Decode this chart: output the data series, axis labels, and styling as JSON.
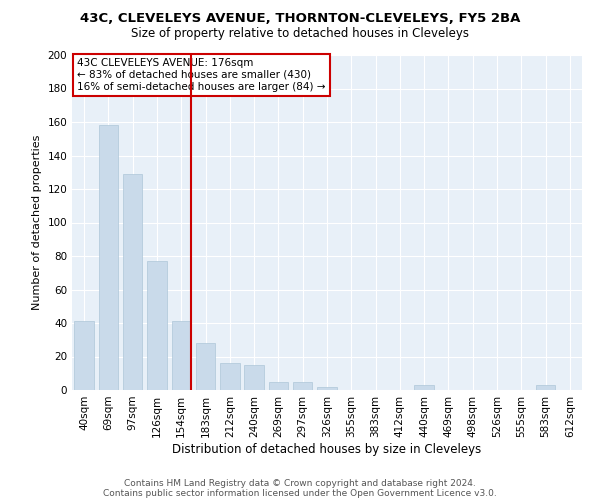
{
  "title1": "43C, CLEVELEYS AVENUE, THORNTON-CLEVELEYS, FY5 2BA",
  "title2": "Size of property relative to detached houses in Cleveleys",
  "xlabel": "Distribution of detached houses by size in Cleveleys",
  "ylabel": "Number of detached properties",
  "categories": [
    "40sqm",
    "69sqm",
    "97sqm",
    "126sqm",
    "154sqm",
    "183sqm",
    "212sqm",
    "240sqm",
    "269sqm",
    "297sqm",
    "326sqm",
    "355sqm",
    "383sqm",
    "412sqm",
    "440sqm",
    "469sqm",
    "498sqm",
    "526sqm",
    "555sqm",
    "583sqm",
    "612sqm"
  ],
  "values": [
    41,
    158,
    129,
    77,
    41,
    28,
    16,
    15,
    5,
    5,
    2,
    0,
    0,
    0,
    3,
    0,
    0,
    0,
    0,
    3,
    0
  ],
  "bar_color": "#c9daea",
  "bar_edge_color": "#aec6d8",
  "bg_color": "#e8f0f8",
  "grid_color": "#ffffff",
  "vline_color": "#cc0000",
  "annotation_text": "43C CLEVELEYS AVENUE: 176sqm\n← 83% of detached houses are smaller (430)\n16% of semi-detached houses are larger (84) →",
  "annotation_box_color": "#cc0000",
  "footer1": "Contains HM Land Registry data © Crown copyright and database right 2024.",
  "footer2": "Contains public sector information licensed under the Open Government Licence v3.0.",
  "ylim": [
    0,
    200
  ],
  "yticks": [
    0,
    20,
    40,
    60,
    80,
    100,
    120,
    140,
    160,
    180,
    200
  ],
  "title1_fontsize": 9.5,
  "title2_fontsize": 8.5,
  "ylabel_fontsize": 8,
  "xlabel_fontsize": 8.5,
  "tick_fontsize": 7.5,
  "footer_fontsize": 6.5
}
